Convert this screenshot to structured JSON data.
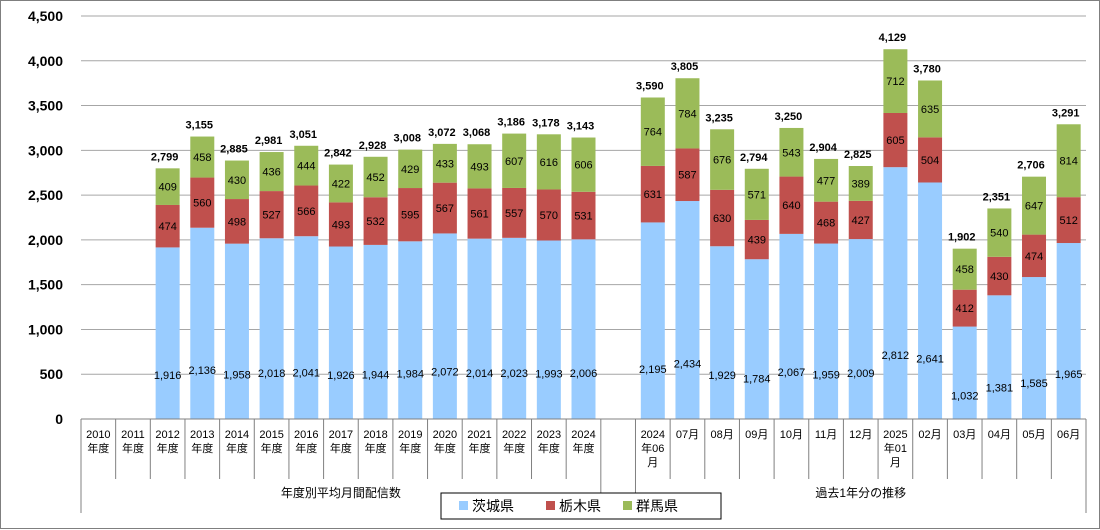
{
  "chart_data": {
    "type": "bar",
    "stacked": true,
    "ylim": [
      0,
      4500
    ],
    "yticks": [
      "0",
      "500",
      "1,000",
      "1,500",
      "2,000",
      "2,500",
      "3,000",
      "3,500",
      "4,000",
      "4,500"
    ],
    "ytick_values": [
      0,
      500,
      1000,
      1500,
      2000,
      2500,
      3000,
      3500,
      4000,
      4500
    ],
    "grid": true,
    "legend_position": "bottom",
    "categories": [
      [
        "2010",
        "年度"
      ],
      [
        "2011",
        "年度"
      ],
      [
        "2012",
        "年度"
      ],
      [
        "2013",
        "年度"
      ],
      [
        "2014",
        "年度"
      ],
      [
        "2015",
        "年度"
      ],
      [
        "2016",
        "年度"
      ],
      [
        "2017",
        "年度"
      ],
      [
        "2018",
        "年度"
      ],
      [
        "2019",
        "年度"
      ],
      [
        "2020",
        "年度"
      ],
      [
        "2021",
        "年度"
      ],
      [
        "2022",
        "年度"
      ],
      [
        "2023",
        "年度"
      ],
      [
        "2024",
        "年度"
      ],
      [],
      [
        "2024",
        "年06",
        "月"
      ],
      [
        "07月"
      ],
      [
        "08月"
      ],
      [
        "09月"
      ],
      [
        "10月"
      ],
      [
        "11月"
      ],
      [
        "12月"
      ],
      [
        "2025",
        "年01",
        "月"
      ],
      [
        "02月"
      ],
      [
        "03月"
      ],
      [
        "04月"
      ],
      [
        "05月"
      ],
      [
        "06月"
      ]
    ],
    "groups": [
      {
        "label": "年度別平均月間配信数",
        "from": 0,
        "to": 14
      },
      {
        "label": "過去1年分の推移",
        "from": 16,
        "to": 28
      }
    ],
    "series": [
      {
        "name": "茨城県",
        "color": "#99ccff",
        "values": [
          null,
          null,
          1916,
          2136,
          1958,
          2018,
          2041,
          1926,
          1944,
          1984,
          2072,
          2014,
          2023,
          1993,
          2006,
          null,
          2195,
          2434,
          1929,
          1784,
          2067,
          1959,
          2009,
          2812,
          2641,
          1032,
          1381,
          1585,
          1965
        ],
        "labels": [
          "",
          "",
          "1,916",
          "2,136",
          "1,958",
          "2,018",
          "2,041",
          "1,926",
          "1,944",
          "1,984",
          "2,072",
          "2,014",
          "2,023",
          "1,993",
          "2,006",
          "",
          "2,195",
          "2,434",
          "1,929",
          "1,784",
          "2,067",
          "1,959",
          "2,009",
          "2,812",
          "2,641",
          "1,032",
          "1,381",
          "1,585",
          "1,965"
        ]
      },
      {
        "name": "栃木県",
        "color": "#c0504d",
        "values": [
          null,
          null,
          474,
          560,
          498,
          527,
          566,
          493,
          532,
          595,
          567,
          561,
          557,
          570,
          531,
          null,
          631,
          587,
          630,
          439,
          640,
          468,
          427,
          605,
          504,
          412,
          430,
          474,
          512
        ],
        "labels": [
          "",
          "",
          "474",
          "560",
          "498",
          "527",
          "566",
          "493",
          "532",
          "595",
          "567",
          "561",
          "557",
          "570",
          "531",
          "",
          "631",
          "587",
          "630",
          "439",
          "640",
          "468",
          "427",
          "605",
          "504",
          "412",
          "430",
          "474",
          "512"
        ]
      },
      {
        "name": "群馬県",
        "color": "#9bbb59",
        "values": [
          null,
          null,
          409,
          458,
          430,
          436,
          444,
          422,
          452,
          429,
          433,
          493,
          607,
          616,
          606,
          null,
          764,
          784,
          676,
          571,
          543,
          477,
          389,
          712,
          635,
          458,
          540,
          647,
          814
        ],
        "labels": [
          "",
          "",
          "409",
          "458",
          "430",
          "436",
          "444",
          "422",
          "452",
          "429",
          "433",
          "493",
          "607",
          "616",
          "606",
          "",
          "764",
          "784",
          "676",
          "571",
          "543",
          "477",
          "389",
          "712",
          "635",
          "458",
          "540",
          "647",
          "814"
        ]
      }
    ],
    "totals": [
      null,
      null,
      2799,
      3155,
      2885,
      2981,
      3051,
      2842,
      2928,
      3008,
      3072,
      3068,
      3186,
      3178,
      3143,
      null,
      3590,
      3805,
      3235,
      2794,
      3250,
      2904,
      2825,
      4129,
      3780,
      1902,
      2351,
      2706,
      3291
    ],
    "total_labels": [
      "",
      "",
      "2,799",
      "3,155",
      "2,885",
      "2,981",
      "3,051",
      "2,842",
      "2,928",
      "3,008",
      "3,072",
      "3,068",
      "3,186",
      "3,178",
      "3,143",
      "",
      "3,590",
      "3,805",
      "3,235",
      "2,794",
      "3,250",
      "2,904",
      "2,825",
      "4,129",
      "3,780",
      "1,902",
      "2,351",
      "2,706",
      "3,291"
    ]
  }
}
